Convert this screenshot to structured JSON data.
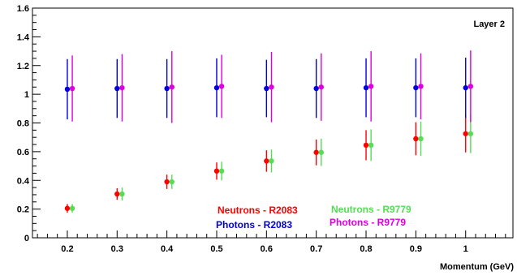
{
  "chart_data": {
    "type": "scatter",
    "title": "",
    "annotation": "Layer 2",
    "xlabel": "Momentum (GeV)",
    "ylabel": "",
    "xlim": [
      0.13,
      1.095
    ],
    "ylim": [
      0,
      1.6
    ],
    "xticks": [
      0.2,
      0.3,
      0.4,
      0.5,
      0.6,
      0.7,
      0.8,
      0.9,
      1
    ],
    "xtick_labels": [
      "0.2",
      "0.3",
      "0.4",
      "0.5",
      "0.6",
      "0.7",
      "0.8",
      "0.9",
      "1"
    ],
    "yticks": [
      0,
      0.2,
      0.4,
      0.6,
      0.8,
      1,
      1.2,
      1.4,
      1.6
    ],
    "ytick_labels": [
      "0",
      "0.2",
      "0.4",
      "0.6",
      "0.8",
      "1",
      "1.2",
      "1.4",
      "1.6"
    ],
    "grid": false,
    "legend_position": "inside, lower center",
    "series": [
      {
        "name": "Neutrons - R2083",
        "color": "#ff0000",
        "x": [
          0.2,
          0.3,
          0.4,
          0.5,
          0.6,
          0.7,
          0.8,
          0.9,
          1.0
        ],
        "y": [
          0.205,
          0.305,
          0.39,
          0.465,
          0.535,
          0.595,
          0.645,
          0.69,
          0.725
        ],
        "err": [
          0.03,
          0.04,
          0.05,
          0.06,
          0.075,
          0.09,
          0.105,
          0.115,
          0.13
        ]
      },
      {
        "name": "Neutrons - R9779",
        "color": "#55dd55",
        "x": [
          0.21,
          0.31,
          0.41,
          0.51,
          0.61,
          0.71,
          0.81,
          0.91,
          1.01
        ],
        "y": [
          0.205,
          0.305,
          0.39,
          0.465,
          0.535,
          0.595,
          0.645,
          0.69,
          0.725
        ],
        "err": [
          0.03,
          0.045,
          0.05,
          0.065,
          0.08,
          0.095,
          0.11,
          0.12,
          0.135
        ]
      },
      {
        "name": "Photons - R2083",
        "color": "#0000dd",
        "x": [
          0.2,
          0.3,
          0.4,
          0.5,
          0.6,
          0.7,
          0.8,
          0.9,
          1.0
        ],
        "y": [
          1.035,
          1.04,
          1.04,
          1.045,
          1.04,
          1.04,
          1.045,
          1.045,
          1.045
        ],
        "err": [
          0.21,
          0.205,
          0.205,
          0.205,
          0.2,
          0.205,
          0.205,
          0.205,
          0.21
        ]
      },
      {
        "name": "Photons - R9779",
        "color": "#dd00dd",
        "x": [
          0.21,
          0.31,
          0.41,
          0.51,
          0.61,
          0.71,
          0.81,
          0.91,
          1.01
        ],
        "y": [
          1.04,
          1.045,
          1.05,
          1.055,
          1.05,
          1.05,
          1.055,
          1.055,
          1.055
        ],
        "err": [
          0.23,
          0.235,
          0.25,
          0.22,
          0.245,
          0.235,
          0.245,
          0.23,
          0.25
        ]
      }
    ]
  }
}
